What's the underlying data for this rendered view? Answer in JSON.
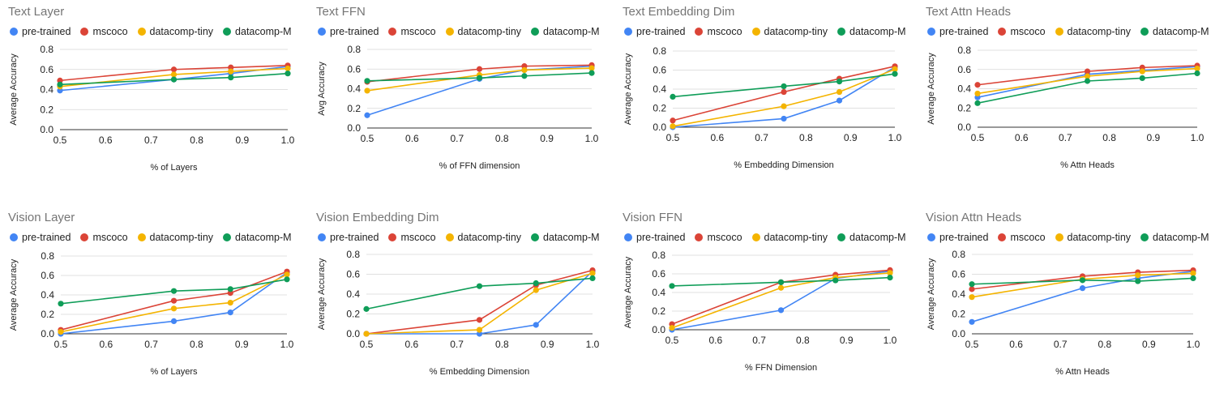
{
  "series_meta": [
    {
      "name": "pre-trained",
      "color": "#4285F4"
    },
    {
      "name": "mscoco",
      "color": "#DB4437"
    },
    {
      "name": "datacomp-tiny",
      "color": "#F4B400"
    },
    {
      "name": "datacomp-M",
      "color": "#0F9D58"
    }
  ],
  "chart_data": [
    {
      "type": "line",
      "title": "Text Layer",
      "xlabel": "% of Layers",
      "ylabel": "Average Accuracy",
      "xlim": [
        0.5,
        1.0
      ],
      "ylim": [
        0.0,
        0.8
      ],
      "xticks": [
        "0.5",
        "0.6",
        "0.7",
        "0.8",
        "0.9",
        "1.0"
      ],
      "yticks": [
        "0.0",
        "0.2",
        "0.4",
        "0.6",
        "0.8"
      ],
      "x": [
        0.5,
        0.75,
        0.875,
        1.0
      ],
      "series": [
        {
          "name": "pre-trained",
          "values": [
            0.39,
            0.5,
            0.56,
            0.63
          ]
        },
        {
          "name": "mscoco",
          "values": [
            0.49,
            0.6,
            0.62,
            0.64
          ]
        },
        {
          "name": "datacomp-tiny",
          "values": [
            0.43,
            0.55,
            0.58,
            0.61
          ]
        },
        {
          "name": "datacomp-M",
          "values": [
            0.45,
            0.5,
            0.52,
            0.56
          ]
        }
      ]
    },
    {
      "type": "line",
      "title": "Text FFN",
      "xlabel": "% of FFN dimension",
      "ylabel": "Avg Accuracy",
      "xlim": [
        0.5,
        1.0
      ],
      "ylim": [
        0.0,
        0.8
      ],
      "xticks": [
        "0.5",
        "0.6",
        "0.7",
        "0.8",
        "0.9",
        "1.0"
      ],
      "yticks": [
        "0.0",
        "0.2",
        "0.4",
        "0.6",
        "0.8"
      ],
      "x": [
        0.5,
        0.75,
        0.85,
        1.0
      ],
      "series": [
        {
          "name": "pre-trained",
          "values": [
            0.13,
            0.5,
            0.59,
            0.63
          ]
        },
        {
          "name": "mscoco",
          "values": [
            0.47,
            0.6,
            0.63,
            0.64
          ]
        },
        {
          "name": "datacomp-tiny",
          "values": [
            0.38,
            0.54,
            0.59,
            0.61
          ]
        },
        {
          "name": "datacomp-M",
          "values": [
            0.48,
            0.51,
            0.53,
            0.56
          ]
        }
      ]
    },
    {
      "type": "line",
      "title": "Text Embedding Dim",
      "xlabel": "% Embedding Dimension",
      "ylabel": "Average Accuracy",
      "xlim": [
        0.5,
        1.0
      ],
      "ylim": [
        0.0,
        0.8
      ],
      "xticks": [
        "0.5",
        "0.6",
        "0.7",
        "0.8",
        "0.9",
        "1.0"
      ],
      "yticks": [
        "0.0",
        "0.2",
        "0.4",
        "0.6",
        "0.8"
      ],
      "x": [
        0.5,
        0.75,
        0.875,
        1.0
      ],
      "series": [
        {
          "name": "pre-trained",
          "values": [
            0.0,
            0.09,
            0.28,
            0.63
          ]
        },
        {
          "name": "mscoco",
          "values": [
            0.07,
            0.37,
            0.51,
            0.64
          ]
        },
        {
          "name": "datacomp-tiny",
          "values": [
            0.01,
            0.22,
            0.37,
            0.61
          ]
        },
        {
          "name": "datacomp-M",
          "values": [
            0.32,
            0.43,
            0.48,
            0.56
          ]
        }
      ]
    },
    {
      "type": "line",
      "title": "Text Attn Heads",
      "xlabel": "% Attn Heads",
      "ylabel": "Average Accuracy",
      "xlim": [
        0.5,
        1.0
      ],
      "ylim": [
        0.0,
        0.8
      ],
      "xticks": [
        "0.5",
        "0.6",
        "0.7",
        "0.8",
        "0.9",
        "1.0"
      ],
      "yticks": [
        "0.0",
        "0.2",
        "0.4",
        "0.6",
        "0.8"
      ],
      "x": [
        0.5,
        0.75,
        0.875,
        1.0
      ],
      "series": [
        {
          "name": "pre-trained",
          "values": [
            0.31,
            0.55,
            0.59,
            0.63
          ]
        },
        {
          "name": "mscoco",
          "values": [
            0.44,
            0.58,
            0.62,
            0.64
          ]
        },
        {
          "name": "datacomp-tiny",
          "values": [
            0.35,
            0.53,
            0.58,
            0.61
          ]
        },
        {
          "name": "datacomp-M",
          "values": [
            0.25,
            0.48,
            0.51,
            0.56
          ]
        }
      ]
    },
    {
      "type": "line",
      "title": "Vision Layer",
      "xlabel": "% of Layers",
      "ylabel": "Average Accuracy",
      "xlim": [
        0.5,
        1.0
      ],
      "ylim": [
        0.0,
        0.8
      ],
      "xticks": [
        "0.5",
        "0.6",
        "0.7",
        "0.8",
        "0.9",
        "1.0"
      ],
      "yticks": [
        "0.0",
        "0.2",
        "0.4",
        "0.6",
        "0.8"
      ],
      "x": [
        0.5,
        0.75,
        0.875,
        1.0
      ],
      "series": [
        {
          "name": "pre-trained",
          "values": [
            0.0,
            0.13,
            0.22,
            0.63
          ]
        },
        {
          "name": "mscoco",
          "values": [
            0.04,
            0.34,
            0.42,
            0.64
          ]
        },
        {
          "name": "datacomp-tiny",
          "values": [
            0.02,
            0.26,
            0.32,
            0.61
          ]
        },
        {
          "name": "datacomp-M",
          "values": [
            0.31,
            0.44,
            0.46,
            0.56
          ]
        }
      ]
    },
    {
      "type": "line",
      "title": "Vision Embedding Dim",
      "xlabel": "% Embedding Dimension",
      "ylabel": "Average Accuracy",
      "xlim": [
        0.5,
        1.0
      ],
      "ylim": [
        0.0,
        0.8
      ],
      "xticks": [
        "0.5",
        "0.6",
        "0.7",
        "0.8",
        "0.9",
        "1.0"
      ],
      "yticks": [
        "0.0",
        "0.2",
        "0.4",
        "0.6",
        "0.8"
      ],
      "x": [
        0.5,
        0.75,
        0.875,
        1.0
      ],
      "series": [
        {
          "name": "pre-trained",
          "values": [
            0.0,
            0.0,
            0.09,
            0.63
          ]
        },
        {
          "name": "mscoco",
          "values": [
            0.0,
            0.14,
            0.49,
            0.64
          ]
        },
        {
          "name": "datacomp-tiny",
          "values": [
            0.0,
            0.04,
            0.44,
            0.61
          ]
        },
        {
          "name": "datacomp-M",
          "values": [
            0.25,
            0.48,
            0.51,
            0.56
          ]
        }
      ]
    },
    {
      "type": "line",
      "title": "Vision FFN",
      "xlabel": "% FFN Dimension",
      "ylabel": "Average Accuracy",
      "xlim": [
        0.5,
        1.0
      ],
      "ylim": [
        0.0,
        0.8
      ],
      "xticks": [
        "0.5",
        "0.6",
        "0.7",
        "0.8",
        "0.9",
        "1.0"
      ],
      "yticks": [
        "0.0",
        "0.2",
        "0.4",
        "0.6",
        "0.8"
      ],
      "x": [
        0.5,
        0.75,
        0.875,
        1.0
      ],
      "series": [
        {
          "name": "pre-trained",
          "values": [
            0.0,
            0.21,
            0.55,
            0.63
          ]
        },
        {
          "name": "mscoco",
          "values": [
            0.06,
            0.51,
            0.59,
            0.64
          ]
        },
        {
          "name": "datacomp-tiny",
          "values": [
            0.02,
            0.45,
            0.56,
            0.61
          ]
        },
        {
          "name": "datacomp-M",
          "values": [
            0.47,
            0.51,
            0.53,
            0.56
          ]
        }
      ]
    },
    {
      "type": "line",
      "title": "Vision Attn Heads",
      "xlabel": "% Attn Heads",
      "ylabel": "Average Accuracy",
      "xlim": [
        0.5,
        1.0
      ],
      "ylim": [
        0.0,
        0.8
      ],
      "xticks": [
        "0.5",
        "0.6",
        "0.7",
        "0.8",
        "0.9",
        "1.0"
      ],
      "yticks": [
        "0.0",
        "0.2",
        "0.4",
        "0.6",
        "0.8"
      ],
      "x": [
        0.5,
        0.75,
        0.875,
        1.0
      ],
      "series": [
        {
          "name": "pre-trained",
          "values": [
            0.12,
            0.46,
            0.56,
            0.63
          ]
        },
        {
          "name": "mscoco",
          "values": [
            0.45,
            0.58,
            0.62,
            0.64
          ]
        },
        {
          "name": "datacomp-tiny",
          "values": [
            0.37,
            0.55,
            0.59,
            0.61
          ]
        },
        {
          "name": "datacomp-M",
          "values": [
            0.5,
            0.54,
            0.53,
            0.56
          ]
        }
      ]
    }
  ]
}
